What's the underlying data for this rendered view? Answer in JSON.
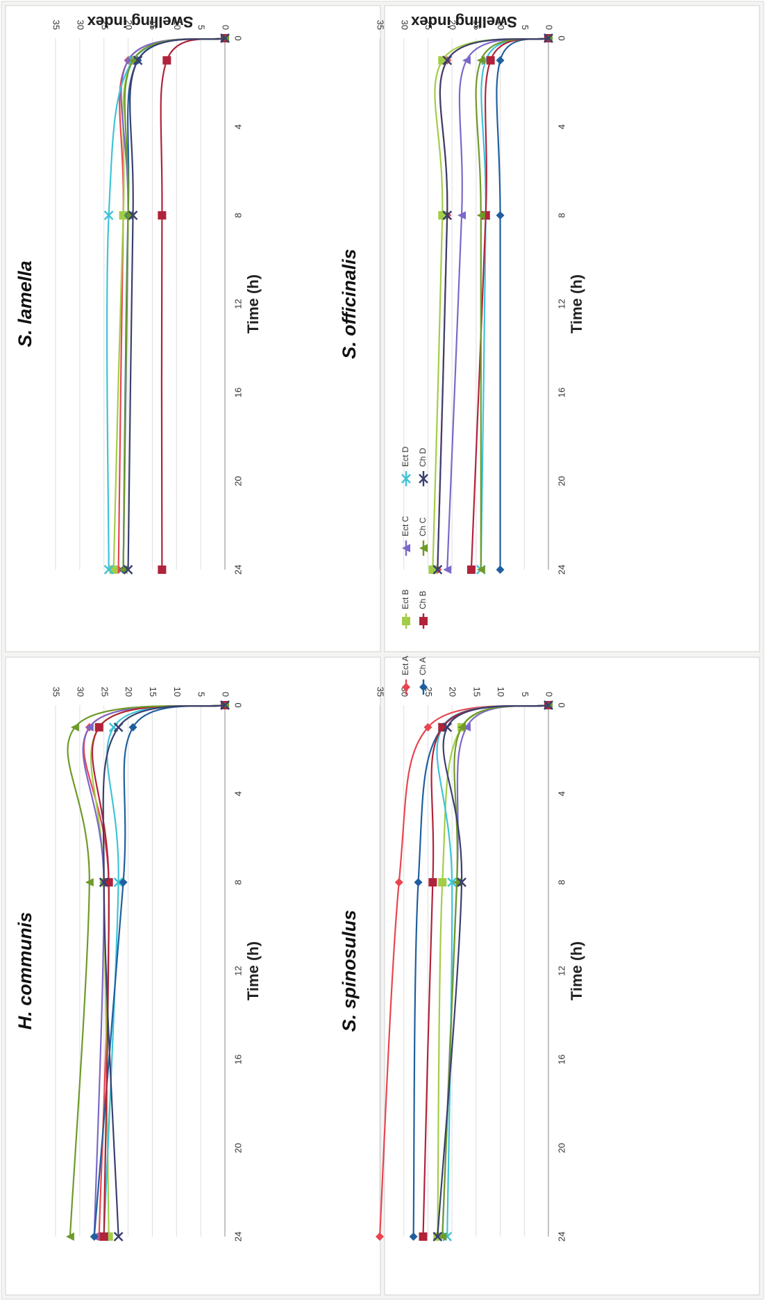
{
  "legend": [
    {
      "name": "Ect A",
      "color": "#e8454f",
      "marker": "diamond"
    },
    {
      "name": "Ect B",
      "color": "#a2cd48",
      "marker": "square"
    },
    {
      "name": "Ect C",
      "color": "#7b68c8",
      "marker": "triangle"
    },
    {
      "name": "Ect D",
      "color": "#3ec3d6",
      "marker": "x"
    },
    {
      "name": "Ch A",
      "color": "#1f5f9e",
      "marker": "diamond"
    },
    {
      "name": "Ch B",
      "color": "#b0233a",
      "marker": "square"
    },
    {
      "name": "Ch C",
      "color": "#6e9a2a",
      "marker": "triangle"
    },
    {
      "name": "Ch D",
      "color": "#3a3f6e",
      "marker": "x"
    }
  ],
  "chart_data": [
    {
      "type": "line",
      "title": "S. lamella",
      "xlabel": "Time (h)",
      "ylabel": "Swelling index",
      "x": [
        0,
        1,
        8,
        24
      ],
      "xticks": [
        0,
        4,
        8,
        12,
        16,
        20,
        24
      ],
      "yticks": [
        0,
        5,
        10,
        15,
        20,
        25,
        30,
        35
      ],
      "xlim": [
        0,
        24
      ],
      "ylim": [
        0,
        35
      ],
      "grid": true,
      "series": [
        {
          "name": "Ect A",
          "values": [
            0,
            20,
            21,
            22
          ]
        },
        {
          "name": "Ect B",
          "values": [
            0,
            19,
            21,
            23
          ]
        },
        {
          "name": "Ect C",
          "values": [
            0,
            20,
            20,
            21
          ]
        },
        {
          "name": "Ect D",
          "values": [
            0,
            19,
            24,
            24
          ]
        },
        {
          "name": "Ch A",
          "values": [
            0,
            18,
            20,
            21
          ]
        },
        {
          "name": "Ch B",
          "values": [
            0,
            12,
            13,
            13
          ]
        },
        {
          "name": "Ch C",
          "values": [
            0,
            19,
            20,
            21
          ]
        },
        {
          "name": "Ch D",
          "values": [
            0,
            18,
            19,
            20
          ]
        }
      ]
    },
    {
      "type": "line",
      "title": "S. officinalis",
      "xlabel": "Time (h)",
      "ylabel": "Swelling index",
      "x": [
        0,
        1,
        8,
        24
      ],
      "xticks": [
        0,
        4,
        8,
        12,
        16,
        20,
        24
      ],
      "yticks": [
        0,
        5,
        10,
        15,
        20,
        25,
        30,
        35
      ],
      "xlim": [
        0,
        24
      ],
      "ylim": [
        0,
        35
      ],
      "grid": true,
      "series": [
        {
          "name": "Ect A",
          "values": [
            0,
            21,
            21,
            23
          ]
        },
        {
          "name": "Ect B",
          "values": [
            0,
            22,
            22,
            24
          ]
        },
        {
          "name": "Ect C",
          "values": [
            0,
            17,
            18,
            21
          ]
        },
        {
          "name": "Ect D",
          "values": [
            0,
            13,
            13,
            14
          ]
        },
        {
          "name": "Ch A",
          "values": [
            0,
            10,
            10,
            10
          ]
        },
        {
          "name": "Ch B",
          "values": [
            0,
            12,
            13,
            16
          ]
        },
        {
          "name": "Ch C",
          "values": [
            0,
            14,
            14,
            14
          ]
        },
        {
          "name": "Ch D",
          "values": [
            0,
            21,
            21,
            23
          ]
        }
      ]
    },
    {
      "type": "line",
      "title": "H. communis",
      "xlabel": "Time (h)",
      "ylabel": "Swelling index",
      "x": [
        0,
        1,
        8,
        24
      ],
      "xticks": [
        0,
        4,
        8,
        12,
        16,
        20,
        24
      ],
      "yticks": [
        0,
        5,
        10,
        15,
        20,
        25,
        30,
        35
      ],
      "xlim": [
        0,
        24
      ],
      "ylim": [
        0,
        35
      ],
      "grid": true,
      "series": [
        {
          "name": "Ect A",
          "values": [
            0,
            28,
            24,
            26
          ]
        },
        {
          "name": "Ect B",
          "values": [
            0,
            26,
            25,
            24
          ]
        },
        {
          "name": "Ect C",
          "values": [
            0,
            28,
            25,
            27
          ]
        },
        {
          "name": "Ect D",
          "values": [
            0,
            23,
            22,
            25
          ]
        },
        {
          "name": "Ch A",
          "values": [
            0,
            19,
            21,
            27
          ]
        },
        {
          "name": "Ch B",
          "values": [
            0,
            26,
            24,
            25
          ]
        },
        {
          "name": "Ch C",
          "values": [
            0,
            31,
            28,
            32
          ]
        },
        {
          "name": "Ch D",
          "values": [
            0,
            22,
            25,
            22
          ]
        }
      ]
    },
    {
      "type": "line",
      "title": "S. spinosulus",
      "xlabel": "Time (h)",
      "ylabel": "Swelling index",
      "x": [
        0,
        1,
        8,
        24
      ],
      "xticks": [
        0,
        4,
        8,
        12,
        16,
        20,
        24
      ],
      "yticks": [
        0,
        5,
        10,
        15,
        20,
        25,
        30,
        35
      ],
      "xlim": [
        0,
        24
      ],
      "ylim": [
        0,
        35
      ],
      "grid": true,
      "series": [
        {
          "name": "Ect A",
          "values": [
            0,
            25,
            31,
            35
          ]
        },
        {
          "name": "Ect B",
          "values": [
            0,
            18,
            22,
            23
          ]
        },
        {
          "name": "Ect C",
          "values": [
            0,
            17,
            19,
            22
          ]
        },
        {
          "name": "Ect D",
          "values": [
            0,
            22,
            20,
            21
          ]
        },
        {
          "name": "Ch A",
          "values": [
            0,
            22,
            27,
            28
          ]
        },
        {
          "name": "Ch B",
          "values": [
            0,
            22,
            24,
            26
          ]
        },
        {
          "name": "Ch C",
          "values": [
            0,
            18,
            19,
            22
          ]
        },
        {
          "name": "Ch D",
          "values": [
            0,
            21,
            18,
            23
          ]
        }
      ]
    }
  ]
}
